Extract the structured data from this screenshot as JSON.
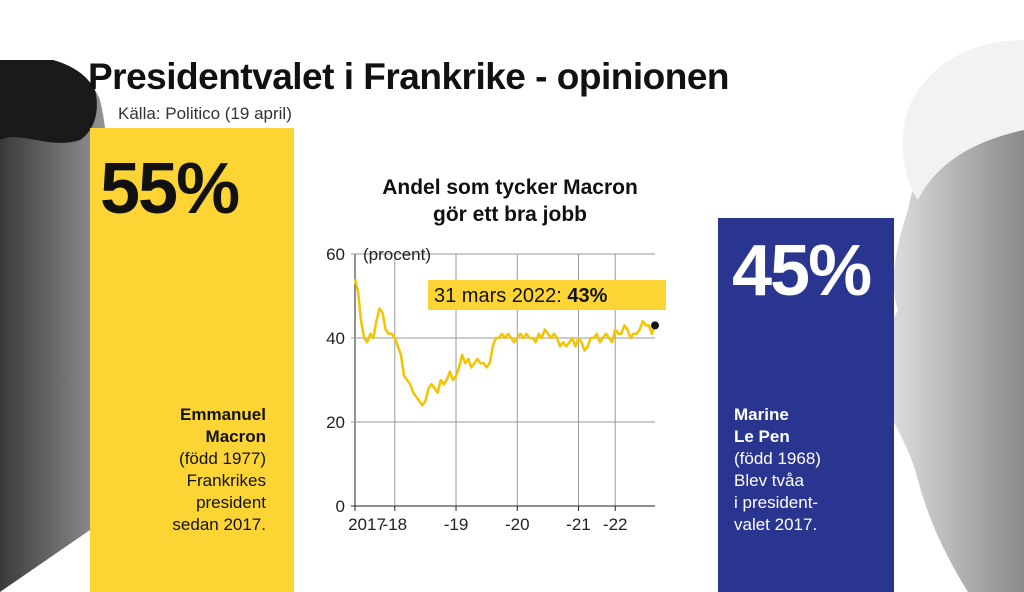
{
  "header": {
    "title": "Presidentvalet i Frankrike - opinionen",
    "source": "Källa: Politico (19 april)"
  },
  "macron": {
    "percent": "55%",
    "first_name": "Emmanuel",
    "last_name": "Macron",
    "born": "(född 1977)",
    "info_line1": "Frankrikes",
    "info_line2": "president",
    "info_line3": "sedan 2017."
  },
  "lepen": {
    "percent": "45%",
    "first_name": "Marine",
    "last_name": "Le Pen",
    "born": "(född 1968)",
    "info_line1": "Blev tvåa",
    "info_line2": "i president-",
    "info_line3": "valet 2017."
  },
  "colors": {
    "yellow": "#fcd535",
    "blue": "#2a3590",
    "line": "#f2c500"
  },
  "chart_data": {
    "type": "line",
    "title_line1": "Andel som tycker Macron",
    "title_line2": "gör ett bra jobb",
    "unit_label": "(procent)",
    "annotation": {
      "date": "31 mars 2022:",
      "value": "43%"
    },
    "ylim": [
      0,
      60
    ],
    "yticks": [
      0,
      20,
      40,
      60
    ],
    "xlim": [
      2017.35,
      2022.25
    ],
    "xticks": [
      {
        "x": 2017.35,
        "label": "2017"
      },
      {
        "x": 2018.0,
        "label": "-18"
      },
      {
        "x": 2019.0,
        "label": "-19"
      },
      {
        "x": 2020.0,
        "label": "-20"
      },
      {
        "x": 2021.0,
        "label": "-21"
      },
      {
        "x": 2021.6,
        "label": "-22"
      }
    ],
    "grid": "vertical",
    "series": [
      {
        "x": [
          2017.35,
          2017.4,
          2017.45,
          2017.5,
          2017.55,
          2017.6,
          2017.65,
          2017.7,
          2017.75,
          2017.8,
          2017.85,
          2017.9,
          2017.95,
          2018.0,
          2018.05,
          2018.1,
          2018.15,
          2018.2,
          2018.25,
          2018.3,
          2018.35,
          2018.4,
          2018.45,
          2018.5,
          2018.55,
          2018.6,
          2018.65,
          2018.7,
          2018.75,
          2018.8,
          2018.85,
          2018.9,
          2018.95,
          2019.0,
          2019.05,
          2019.1,
          2019.15,
          2019.2,
          2019.25,
          2019.3,
          2019.35,
          2019.4,
          2019.45,
          2019.5,
          2019.55,
          2019.6,
          2019.65,
          2019.7,
          2019.75,
          2019.8,
          2019.85,
          2019.9,
          2019.95,
          2020.0,
          2020.05,
          2020.1,
          2020.15,
          2020.2,
          2020.25,
          2020.3,
          2020.35,
          2020.4,
          2020.45,
          2020.5,
          2020.55,
          2020.6,
          2020.65,
          2020.7,
          2020.75,
          2020.8,
          2020.85,
          2020.9,
          2020.95,
          2021.0,
          2021.05,
          2021.1,
          2021.15,
          2021.2,
          2021.25,
          2021.3,
          2021.35,
          2021.4,
          2021.45,
          2021.5,
          2021.55,
          2021.6,
          2021.65,
          2021.7,
          2021.75,
          2021.8,
          2021.85,
          2021.9,
          2021.95,
          2022.0,
          2022.05,
          2022.1,
          2022.15,
          2022.2,
          2022.25
        ],
        "values": [
          54,
          51,
          44,
          40,
          39,
          41,
          40,
          44,
          47,
          46,
          42,
          41,
          41,
          40,
          38,
          36,
          31,
          30,
          29,
          27,
          26,
          25,
          24,
          25,
          28,
          29,
          28,
          27,
          30,
          29,
          30,
          32,
          30,
          31,
          33,
          36,
          34,
          35,
          33,
          34,
          35,
          34,
          34,
          33,
          34,
          38,
          40,
          40,
          41,
          40,
          41,
          40,
          39,
          40,
          41,
          40,
          41,
          40,
          40,
          39,
          41,
          40,
          42,
          41,
          40,
          41,
          40,
          38,
          39,
          38,
          39,
          40,
          38,
          40,
          39,
          37,
          38,
          40,
          40,
          41,
          39,
          40,
          41,
          40,
          39,
          42,
          41,
          41,
          43,
          42,
          40,
          41,
          41,
          42,
          44,
          43,
          43,
          41,
          43
        ]
      }
    ]
  }
}
